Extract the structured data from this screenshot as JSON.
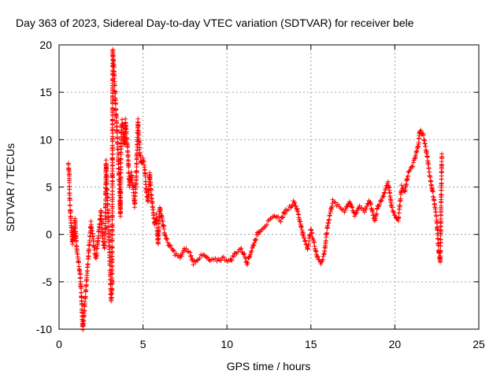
{
  "chart_data": {
    "type": "scatter",
    "title": "Day 363 of 2023, Sidereal Day-to-day VTEC variation (SDTVAR) for receiver bele",
    "xlabel": "GPS time / hours",
    "ylabel": "SDTVAR / TECUs",
    "xlim": [
      0,
      25
    ],
    "ylim": [
      -10,
      20
    ],
    "xticks": [
      0,
      5,
      10,
      15,
      20,
      25
    ],
    "yticks": [
      -10,
      -5,
      0,
      5,
      10,
      15,
      20
    ],
    "grid": true,
    "marker": "+",
    "color": "#ff0000",
    "series": [
      {
        "name": "SDTVAR",
        "trace": [
          [
            0.55,
            7.5
          ],
          [
            0.6,
            6.5
          ],
          [
            0.62,
            4.5
          ],
          [
            0.68,
            2.0
          ],
          [
            0.75,
            0.5
          ],
          [
            0.8,
            -1.0
          ],
          [
            0.85,
            0.5
          ],
          [
            0.9,
            -0.5
          ],
          [
            0.95,
            1.5
          ],
          [
            1.0,
            0.0
          ],
          [
            1.05,
            -1.5
          ],
          [
            1.25,
            -4.2
          ],
          [
            1.3,
            -5.5
          ],
          [
            1.35,
            -7.0
          ],
          [
            1.38,
            -8.8
          ],
          [
            1.42,
            -10.0
          ],
          [
            1.9,
            1.2
          ],
          [
            2.0,
            0.0
          ],
          [
            2.1,
            -1.5
          ],
          [
            2.2,
            -2.5
          ],
          [
            2.5,
            2.5
          ],
          [
            2.6,
            -0.5
          ],
          [
            2.7,
            -1.5
          ],
          [
            2.75,
            0.5
          ],
          [
            2.8,
            7.8
          ],
          [
            2.85,
            5.0
          ],
          [
            2.9,
            3.0
          ],
          [
            2.95,
            1.0
          ],
          [
            3.0,
            -2.0
          ],
          [
            3.05,
            -4.5
          ],
          [
            3.1,
            -7.0
          ],
          [
            3.15,
            -6.0
          ],
          [
            3.2,
            19.5
          ],
          [
            3.25,
            18.0
          ],
          [
            3.3,
            16.0
          ],
          [
            3.35,
            14.5
          ],
          [
            3.4,
            12.5
          ],
          [
            3.45,
            11.0
          ],
          [
            3.5,
            9.0
          ],
          [
            3.55,
            7.0
          ],
          [
            3.6,
            5.0
          ],
          [
            3.65,
            2.0
          ],
          [
            3.7,
            10.5
          ],
          [
            3.75,
            12.0
          ],
          [
            3.8,
            11.5
          ],
          [
            3.85,
            10.0
          ],
          [
            3.9,
            9.5
          ],
          [
            3.95,
            12.0
          ],
          [
            4.0,
            11.0
          ],
          [
            4.1,
            8.5
          ],
          [
            4.2,
            5.0
          ],
          [
            4.3,
            6.5
          ],
          [
            4.4,
            5.0
          ],
          [
            4.5,
            3.0
          ],
          [
            4.6,
            6.0
          ],
          [
            4.7,
            12.0
          ],
          [
            4.8,
            8.5
          ],
          [
            4.9,
            7.5
          ],
          [
            5.0,
            8.0
          ],
          [
            5.1,
            7.0
          ],
          [
            5.2,
            4.5
          ],
          [
            5.3,
            3.5
          ],
          [
            5.4,
            6.5
          ],
          [
            5.5,
            4.0
          ],
          [
            5.6,
            2.5
          ],
          [
            5.7,
            1.0
          ],
          [
            5.8,
            2.0
          ],
          [
            5.9,
            -1.0
          ],
          [
            6.0,
            3.0
          ],
          [
            6.1,
            2.0
          ],
          [
            6.2,
            1.0
          ],
          [
            6.3,
            0.0
          ],
          [
            6.4,
            -0.5
          ],
          [
            6.5,
            -1.0
          ],
          [
            6.7,
            -1.5
          ],
          [
            6.9,
            -2.0
          ],
          [
            7.2,
            -2.5
          ],
          [
            7.5,
            -1.5
          ],
          [
            7.8,
            -2.0
          ],
          [
            8.0,
            -3.0
          ],
          [
            8.3,
            -2.5
          ],
          [
            8.6,
            -2.2
          ],
          [
            9.0,
            -2.8
          ],
          [
            9.4,
            -2.7
          ],
          [
            9.8,
            -2.5
          ],
          [
            10.2,
            -2.8
          ],
          [
            10.5,
            -2.0
          ],
          [
            10.8,
            -1.5
          ],
          [
            11.0,
            -2.0
          ],
          [
            11.2,
            -3.0
          ],
          [
            11.4,
            -2.0
          ],
          [
            11.6,
            -1.0
          ],
          [
            11.8,
            0.0
          ],
          [
            12.0,
            0.5
          ],
          [
            12.3,
            1.0
          ],
          [
            12.6,
            1.5
          ],
          [
            12.9,
            2.0
          ],
          [
            13.2,
            1.5
          ],
          [
            13.5,
            2.5
          ],
          [
            13.8,
            3.0
          ],
          [
            14.0,
            3.5
          ],
          [
            14.2,
            2.5
          ],
          [
            14.4,
            1.0
          ],
          [
            14.6,
            -0.5
          ],
          [
            14.8,
            -1.5
          ],
          [
            15.0,
            0.5
          ],
          [
            15.2,
            -1.0
          ],
          [
            15.4,
            -2.5
          ],
          [
            15.6,
            -3.0
          ],
          [
            15.8,
            -2.0
          ],
          [
            16.0,
            1.0
          ],
          [
            16.3,
            3.5
          ],
          [
            16.6,
            3.0
          ],
          [
            17.0,
            2.5
          ],
          [
            17.3,
            3.5
          ],
          [
            17.6,
            2.0
          ],
          [
            17.9,
            3.0
          ],
          [
            18.2,
            2.5
          ],
          [
            18.5,
            3.5
          ],
          [
            18.8,
            1.5
          ],
          [
            19.0,
            3.0
          ],
          [
            19.3,
            4.0
          ],
          [
            19.6,
            5.5
          ],
          [
            19.8,
            3.0
          ],
          [
            20.0,
            2.0
          ],
          [
            20.2,
            1.5
          ],
          [
            20.4,
            5.0
          ],
          [
            20.6,
            4.5
          ],
          [
            20.8,
            6.5
          ],
          [
            21.0,
            7.0
          ],
          [
            21.2,
            8.0
          ],
          [
            21.4,
            9.5
          ],
          [
            21.5,
            11.0
          ],
          [
            21.7,
            10.5
          ],
          [
            21.9,
            8.5
          ],
          [
            22.1,
            6.0
          ],
          [
            22.3,
            4.0
          ],
          [
            22.5,
            1.5
          ],
          [
            22.6,
            -1.5
          ],
          [
            22.7,
            -3.0
          ],
          [
            22.8,
            8.5
          ]
        ]
      }
    ]
  }
}
